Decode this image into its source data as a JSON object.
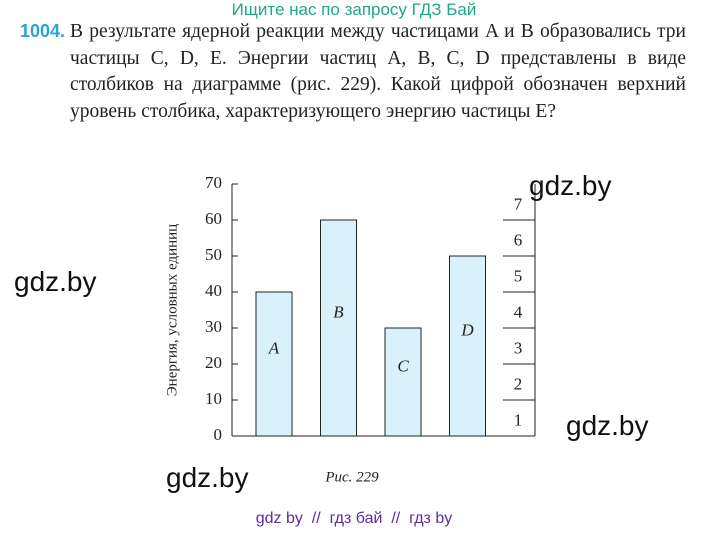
{
  "header": {
    "banner": "Ищите нас по запросу ГДЗ Бай"
  },
  "problem": {
    "number": "1004.",
    "text": "В результате ядерной реакции между частицами A и B образовались три частицы C, D, E. Энергии частиц A, B, C, D представлены в виде столбиков на диаграмме (рис. 229). Какой цифрой обозначен верхний уровень столбика, характеризующего энергию частицы E?"
  },
  "chart_data": {
    "type": "bar",
    "ylabel": "Энергия, условных единиц",
    "categories": [
      "A",
      "B",
      "C",
      "D"
    ],
    "values": [
      40,
      60,
      30,
      50
    ],
    "color": "#d9f1fb",
    "ylim": [
      0,
      70
    ],
    "yticks": [
      0,
      10,
      20,
      30,
      40,
      50,
      60,
      70
    ],
    "levels": [
      1,
      2,
      3,
      4,
      5,
      6,
      7
    ]
  },
  "figure": {
    "caption": "Рис. 229"
  },
  "watermarks": [
    "gdz.by",
    "gdz.by",
    "gdz.by",
    "gdz.by"
  ],
  "footer": {
    "text": "gdz by  //  гдз бай  //  гдз by"
  }
}
